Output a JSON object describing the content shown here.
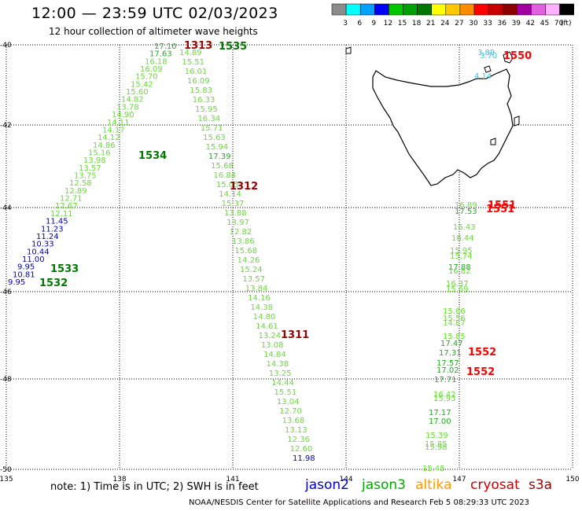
{
  "title": "12:00 — 23:59 UTC 02/03/2023",
  "subtitle": "12 hour collection of altimeter wave heights",
  "note": "note:  1) Time is in UTC; 2) SWH is in feet",
  "footer": "NOAA/NESDIS Center for Satellite Applications and Research    Feb  5 08:29:33 UTC 2023",
  "color_scale": {
    "unit": "(ft)",
    "steps": [
      {
        "label": "3",
        "color": "#8c8c8c"
      },
      {
        "label": "6",
        "color": "#00ffff"
      },
      {
        "label": "9",
        "color": "#00a0ff"
      },
      {
        "label": "12",
        "color": "#0000ff"
      },
      {
        "label": "15",
        "color": "#00c800"
      },
      {
        "label": "18",
        "color": "#00a000"
      },
      {
        "label": "21",
        "color": "#007800"
      },
      {
        "label": "24",
        "color": "#ffff00"
      },
      {
        "label": "27",
        "color": "#ffc800"
      },
      {
        "label": "30",
        "color": "#ff8c00"
      },
      {
        "label": "33",
        "color": "#ff0000"
      },
      {
        "label": "36",
        "color": "#c80000"
      },
      {
        "label": "39",
        "color": "#8c0000"
      },
      {
        "label": "42",
        "color": "#a000a0"
      },
      {
        "label": "45",
        "color": "#e060e0"
      },
      {
        "label": "70",
        "color": "#ffb0ff"
      },
      {
        "label": "",
        "color": "#000000"
      }
    ]
  },
  "axes": {
    "lat_labels": [
      "-40",
      "-42",
      "-44",
      "-46",
      "-48",
      "-50"
    ],
    "lon_labels": [
      "135",
      "138",
      "141",
      "144",
      "147",
      "150"
    ]
  },
  "satellites": [
    {
      "name": "jason2",
      "color": "#0000cc"
    },
    {
      "name": "jason3",
      "color": "#00aa00"
    },
    {
      "name": "altika",
      "color": "#ff9900"
    },
    {
      "name": "cryosat",
      "color": "#cc0000"
    },
    {
      "name": "s3a",
      "color": "#990000"
    }
  ],
  "pass_times": [
    {
      "label": "1313",
      "color": "#990000"
    },
    {
      "label": "1535",
      "color": "#007800"
    },
    {
      "label": "1534",
      "color": "#007800"
    },
    {
      "label": "1312",
      "color": "#990000"
    },
    {
      "label": "1533",
      "color": "#007800"
    },
    {
      "label": "1532",
      "color": "#007800"
    },
    {
      "label": "1311",
      "color": "#990000"
    },
    {
      "label": "1550",
      "color": "#ff0000"
    },
    {
      "label": "1551",
      "color": "#ff0000"
    },
    {
      "label": "1551",
      "color": "#ff0000"
    },
    {
      "label": "1552",
      "color": "#ff0000"
    },
    {
      "label": "1552",
      "color": "#ff0000"
    }
  ],
  "wave_heights": {
    "track_west": [
      "17.10",
      "17.63",
      "16.18",
      "16.09",
      "15.70",
      "15.42",
      "15.60",
      "14.82",
      "13.78",
      "14.90",
      "14.11",
      "14.17",
      "14.12",
      "14.86",
      "15.16",
      "13.98",
      "13.57",
      "13.75",
      "12.58",
      "12.89",
      "12.71",
      "12.67",
      "12.11",
      "11.45",
      "11.23",
      "11.24",
      "10.33",
      "10.44",
      "11.00",
      "9.95",
      "10.81",
      "9.95"
    ],
    "track_mid": [
      "14.89",
      "15.51",
      "16.01",
      "16.09",
      "15.83",
      "16.33",
      "15.95",
      "16.34",
      "15.71",
      "15.63",
      "15.94",
      "17.39",
      "15.68",
      "16.84",
      "15.05",
      "14.14",
      "15.37",
      "13.88",
      "13.97",
      "12.82",
      "13.86",
      "15.68",
      "14.26",
      "15.24",
      "13.57",
      "13.84",
      "14.16",
      "14.38",
      "14.80",
      "14.61",
      "13.24",
      "13.08",
      "14.84",
      "14.38",
      "13.25",
      "14.44",
      "15.51",
      "13.04",
      "12.70",
      "13.68",
      "13.13",
      "12.36",
      "12.60",
      "11.98"
    ],
    "track_east": [
      "3.89",
      "3.70",
      "4.14",
      "16.89",
      "17.53",
      "16.43",
      "16.44",
      "15.95",
      "15.74",
      "17.88",
      "16.82",
      "16.37",
      "15.69",
      "15.66",
      "15.56",
      "14.87",
      "15.85",
      "17.47",
      "17.31",
      "17.57",
      "17.02",
      "17.71",
      "16.42",
      "15.93",
      "17.17",
      "17.00",
      "15.39",
      "15.85",
      "15.98",
      "15.45"
    ]
  }
}
